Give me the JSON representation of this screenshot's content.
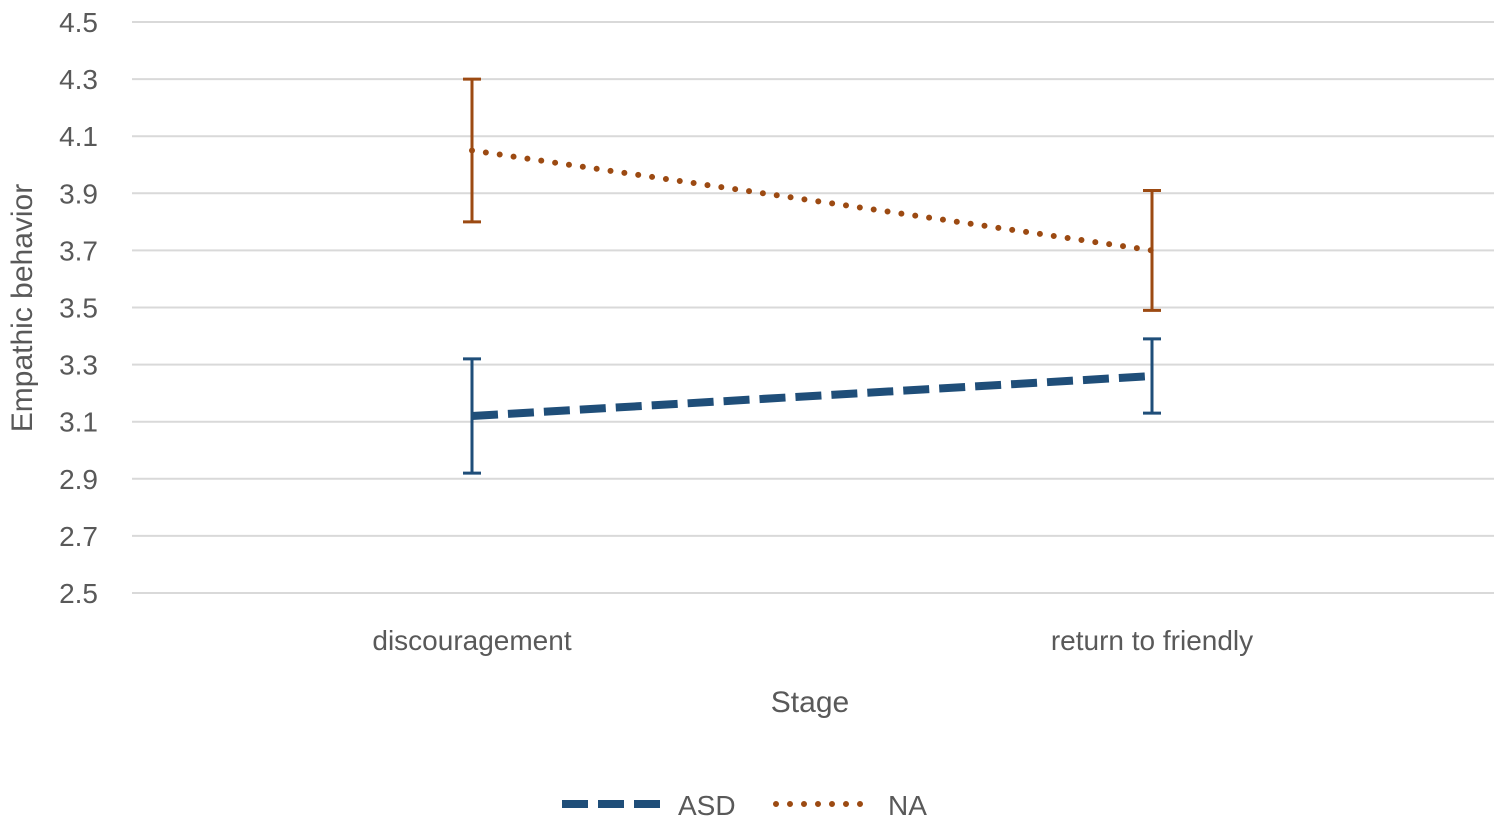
{
  "chart_data": {
    "type": "line",
    "xlabel": "Stage",
    "ylabel": "Empathic behavior",
    "categories": [
      "discouragement",
      "return to friendly"
    ],
    "y_ticks": [
      "2.5",
      "2.7",
      "2.9",
      "3.1",
      "3.3",
      "3.5",
      "3.7",
      "3.9",
      "4.1",
      "4.3",
      "4.5"
    ],
    "ylim": [
      2.5,
      4.5
    ],
    "grid": "horizontal",
    "legend_position": "bottom",
    "series": [
      {
        "name": "ASD",
        "values": [
          3.12,
          3.26
        ],
        "error_low": [
          2.92,
          3.13
        ],
        "error_high": [
          3.32,
          3.39
        ],
        "color": "#1f4e79",
        "line_style": "dashed"
      },
      {
        "name": "NA",
        "values": [
          4.05,
          3.7
        ],
        "error_low": [
          3.8,
          3.49
        ],
        "error_high": [
          4.3,
          3.91
        ],
        "color": "#9c4a12",
        "line_style": "dotted"
      }
    ]
  }
}
